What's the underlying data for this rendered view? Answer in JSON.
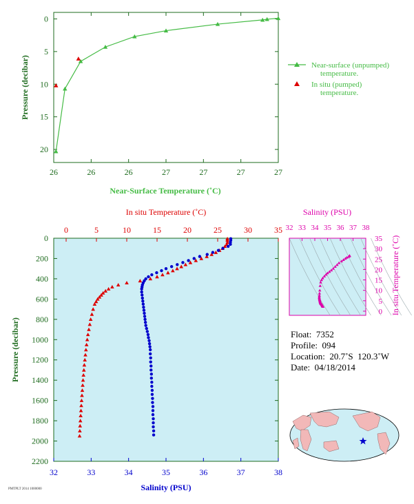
{
  "colors": {
    "near_surface": "#44bb44",
    "in_situ": "#dd0000",
    "salinity": "#0000cc",
    "ts_plot": "#dd00aa",
    "main_bg": "#cdeef5",
    "axis_green": "#1e6b1e"
  },
  "chart_data": [
    {
      "id": "near_surface",
      "type": "line",
      "xlabel": "Near-Surface Temperature (˚C)",
      "ylabel": "Pressure (decibar)",
      "xlim": [
        26,
        27
      ],
      "ylim": [
        22,
        -1
      ],
      "x_ticks": [
        "26",
        "26",
        "26",
        "27",
        "27",
        "27",
        "27"
      ],
      "x_tick_values": [
        26.0,
        26.2,
        26.4,
        26.6,
        26.8,
        27.0,
        27.2
      ],
      "y_ticks": [
        "0",
        "5",
        "10",
        "15",
        "20"
      ],
      "y_tick_values": [
        0,
        5,
        10,
        15,
        20
      ],
      "series": [
        {
          "name": "Near-surface (unpumped) temperature.",
          "marker": "triangle",
          "line": true,
          "points": [
            [
              26.01,
              20.3
            ],
            [
              26.05,
              10.7
            ],
            [
              26.12,
              6.5
            ],
            [
              26.23,
              4.3
            ],
            [
              26.36,
              2.7
            ],
            [
              26.5,
              1.8
            ],
            [
              26.73,
              0.8
            ],
            [
              26.93,
              0.15
            ],
            [
              26.95,
              0.05
            ],
            [
              27.0,
              -0.1
            ]
          ]
        },
        {
          "name": "In situ (pumped) temperature.",
          "marker": "triangle",
          "line": false,
          "points": [
            [
              26.01,
              10.2
            ],
            [
              26.11,
              6.1
            ]
          ]
        }
      ]
    },
    {
      "id": "profile",
      "type": "scatter",
      "xlabel_top": "In situ Temperature (˚C)",
      "xlabel_bottom": "Salinity (PSU)",
      "ylabel": "Pressure (decibar)",
      "temp_lim": [
        -2,
        35
      ],
      "sal_lim": [
        32,
        38
      ],
      "ylim": [
        2200,
        0
      ],
      "temp_ticks": [
        "0",
        "5",
        "10",
        "15",
        "20",
        "25",
        "30",
        "35"
      ],
      "temp_tick_values": [
        0,
        5,
        10,
        15,
        20,
        25,
        30,
        35
      ],
      "sal_ticks": [
        "32",
        "33",
        "34",
        "35",
        "36",
        "37",
        "38"
      ],
      "sal_tick_values": [
        32,
        33,
        34,
        35,
        36,
        37,
        38
      ],
      "y_ticks": [
        "0",
        "200",
        "400",
        "600",
        "800",
        "1000",
        "1200",
        "1400",
        "1600",
        "1800",
        "2000",
        "2200"
      ],
      "y_tick_values": [
        0,
        200,
        400,
        600,
        800,
        1000,
        1200,
        1400,
        1600,
        1800,
        2000,
        2200
      ],
      "temperature": [
        [
          26.6,
          5
        ],
        [
          26.6,
          20
        ],
        [
          26.6,
          40
        ],
        [
          26.5,
          60
        ],
        [
          26.2,
          80
        ],
        [
          25.8,
          100
        ],
        [
          25.3,
          120
        ],
        [
          24.7,
          140
        ],
        [
          24.0,
          160
        ],
        [
          23.2,
          180
        ],
        [
          22.3,
          200
        ],
        [
          21.4,
          220
        ],
        [
          20.5,
          240
        ],
        [
          19.7,
          260
        ],
        [
          19.0,
          280
        ],
        [
          18.3,
          300
        ],
        [
          17.6,
          320
        ],
        [
          16.8,
          340
        ],
        [
          15.9,
          360
        ],
        [
          15.0,
          380
        ],
        [
          13.9,
          400
        ],
        [
          12.2,
          420
        ],
        [
          10.0,
          440
        ],
        [
          8.6,
          460
        ],
        [
          7.6,
          480
        ],
        [
          7.0,
          500
        ],
        [
          6.5,
          520
        ],
        [
          6.1,
          540
        ],
        [
          5.8,
          560
        ],
        [
          5.5,
          580
        ],
        [
          5.2,
          600
        ],
        [
          4.95,
          625
        ],
        [
          4.7,
          650
        ],
        [
          4.45,
          700
        ],
        [
          4.25,
          750
        ],
        [
          4.05,
          800
        ],
        [
          3.9,
          850
        ],
        [
          3.75,
          900
        ],
        [
          3.6,
          950
        ],
        [
          3.48,
          1000
        ],
        [
          3.37,
          1050
        ],
        [
          3.27,
          1100
        ],
        [
          3.18,
          1150
        ],
        [
          3.09,
          1200
        ],
        [
          3.0,
          1250
        ],
        [
          2.93,
          1300
        ],
        [
          2.86,
          1350
        ],
        [
          2.79,
          1400
        ],
        [
          2.73,
          1450
        ],
        [
          2.67,
          1500
        ],
        [
          2.61,
          1550
        ],
        [
          2.55,
          1600
        ],
        [
          2.5,
          1650
        ],
        [
          2.45,
          1700
        ],
        [
          2.4,
          1750
        ],
        [
          2.35,
          1800
        ],
        [
          2.3,
          1850
        ],
        [
          2.26,
          1900
        ],
        [
          2.22,
          1950
        ]
      ],
      "salinity": [
        [
          36.73,
          5
        ],
        [
          36.73,
          20
        ],
        [
          36.72,
          40
        ],
        [
          36.72,
          60
        ],
        [
          36.66,
          80
        ],
        [
          36.52,
          100
        ],
        [
          36.4,
          120
        ],
        [
          36.25,
          140
        ],
        [
          36.1,
          160
        ],
        [
          35.9,
          180
        ],
        [
          35.75,
          200
        ],
        [
          35.6,
          220
        ],
        [
          35.45,
          240
        ],
        [
          35.3,
          260
        ],
        [
          35.15,
          280
        ],
        [
          35.0,
          300
        ],
        [
          34.88,
          320
        ],
        [
          34.75,
          340
        ],
        [
          34.62,
          360
        ],
        [
          34.53,
          380
        ],
        [
          34.46,
          400
        ],
        [
          34.42,
          420
        ],
        [
          34.39,
          440
        ],
        [
          34.37,
          460
        ],
        [
          34.36,
          480
        ],
        [
          34.35,
          500
        ],
        [
          34.35,
          530
        ],
        [
          34.36,
          560
        ],
        [
          34.37,
          590
        ],
        [
          34.38,
          620
        ],
        [
          34.39,
          650
        ],
        [
          34.4,
          680
        ],
        [
          34.41,
          710
        ],
        [
          34.42,
          740
        ],
        [
          34.43,
          770
        ],
        [
          34.44,
          800
        ],
        [
          34.45,
          830
        ],
        [
          34.46,
          860
        ],
        [
          34.48,
          890
        ],
        [
          34.5,
          920
        ],
        [
          34.52,
          950
        ],
        [
          34.53,
          980
        ],
        [
          34.55,
          1010
        ],
        [
          34.56,
          1040
        ],
        [
          34.57,
          1070
        ],
        [
          34.58,
          1100
        ],
        [
          34.58,
          1140
        ],
        [
          34.59,
          1180
        ],
        [
          34.59,
          1220
        ],
        [
          34.6,
          1260
        ],
        [
          34.6,
          1300
        ],
        [
          34.61,
          1340
        ],
        [
          34.61,
          1380
        ],
        [
          34.62,
          1420
        ],
        [
          34.62,
          1460
        ],
        [
          34.63,
          1500
        ],
        [
          34.63,
          1540
        ],
        [
          34.64,
          1580
        ],
        [
          34.64,
          1620
        ],
        [
          34.65,
          1660
        ],
        [
          34.65,
          1700
        ],
        [
          34.65,
          1740
        ],
        [
          34.66,
          1780
        ],
        [
          34.66,
          1820
        ],
        [
          34.66,
          1860
        ],
        [
          34.67,
          1900
        ],
        [
          34.67,
          1940
        ]
      ]
    },
    {
      "id": "ts",
      "type": "scatter",
      "xlabel": "Salinity (PSU)",
      "ylabel": "In situ Temperature (˚C)",
      "xlim": [
        32,
        38
      ],
      "ylim": [
        -2,
        35
      ],
      "x_ticks": [
        "32",
        "33",
        "34",
        "35",
        "36",
        "37",
        "38"
      ],
      "x_tick_values": [
        32,
        33,
        34,
        35,
        36,
        37,
        38
      ],
      "y_ticks": [
        "0",
        "5",
        "10",
        "15",
        "20",
        "25",
        "30",
        "35"
      ],
      "y_tick_values": [
        0,
        5,
        10,
        15,
        20,
        25,
        30,
        35
      ]
    }
  ],
  "info": {
    "float": "Float:  7352",
    "profile": "Profile:  094",
    "location": "Location:  20.7˚S  120.3˚W",
    "date": "Date:  04/18/2014"
  },
  "footer": "PMTPLT 2014 1000000"
}
